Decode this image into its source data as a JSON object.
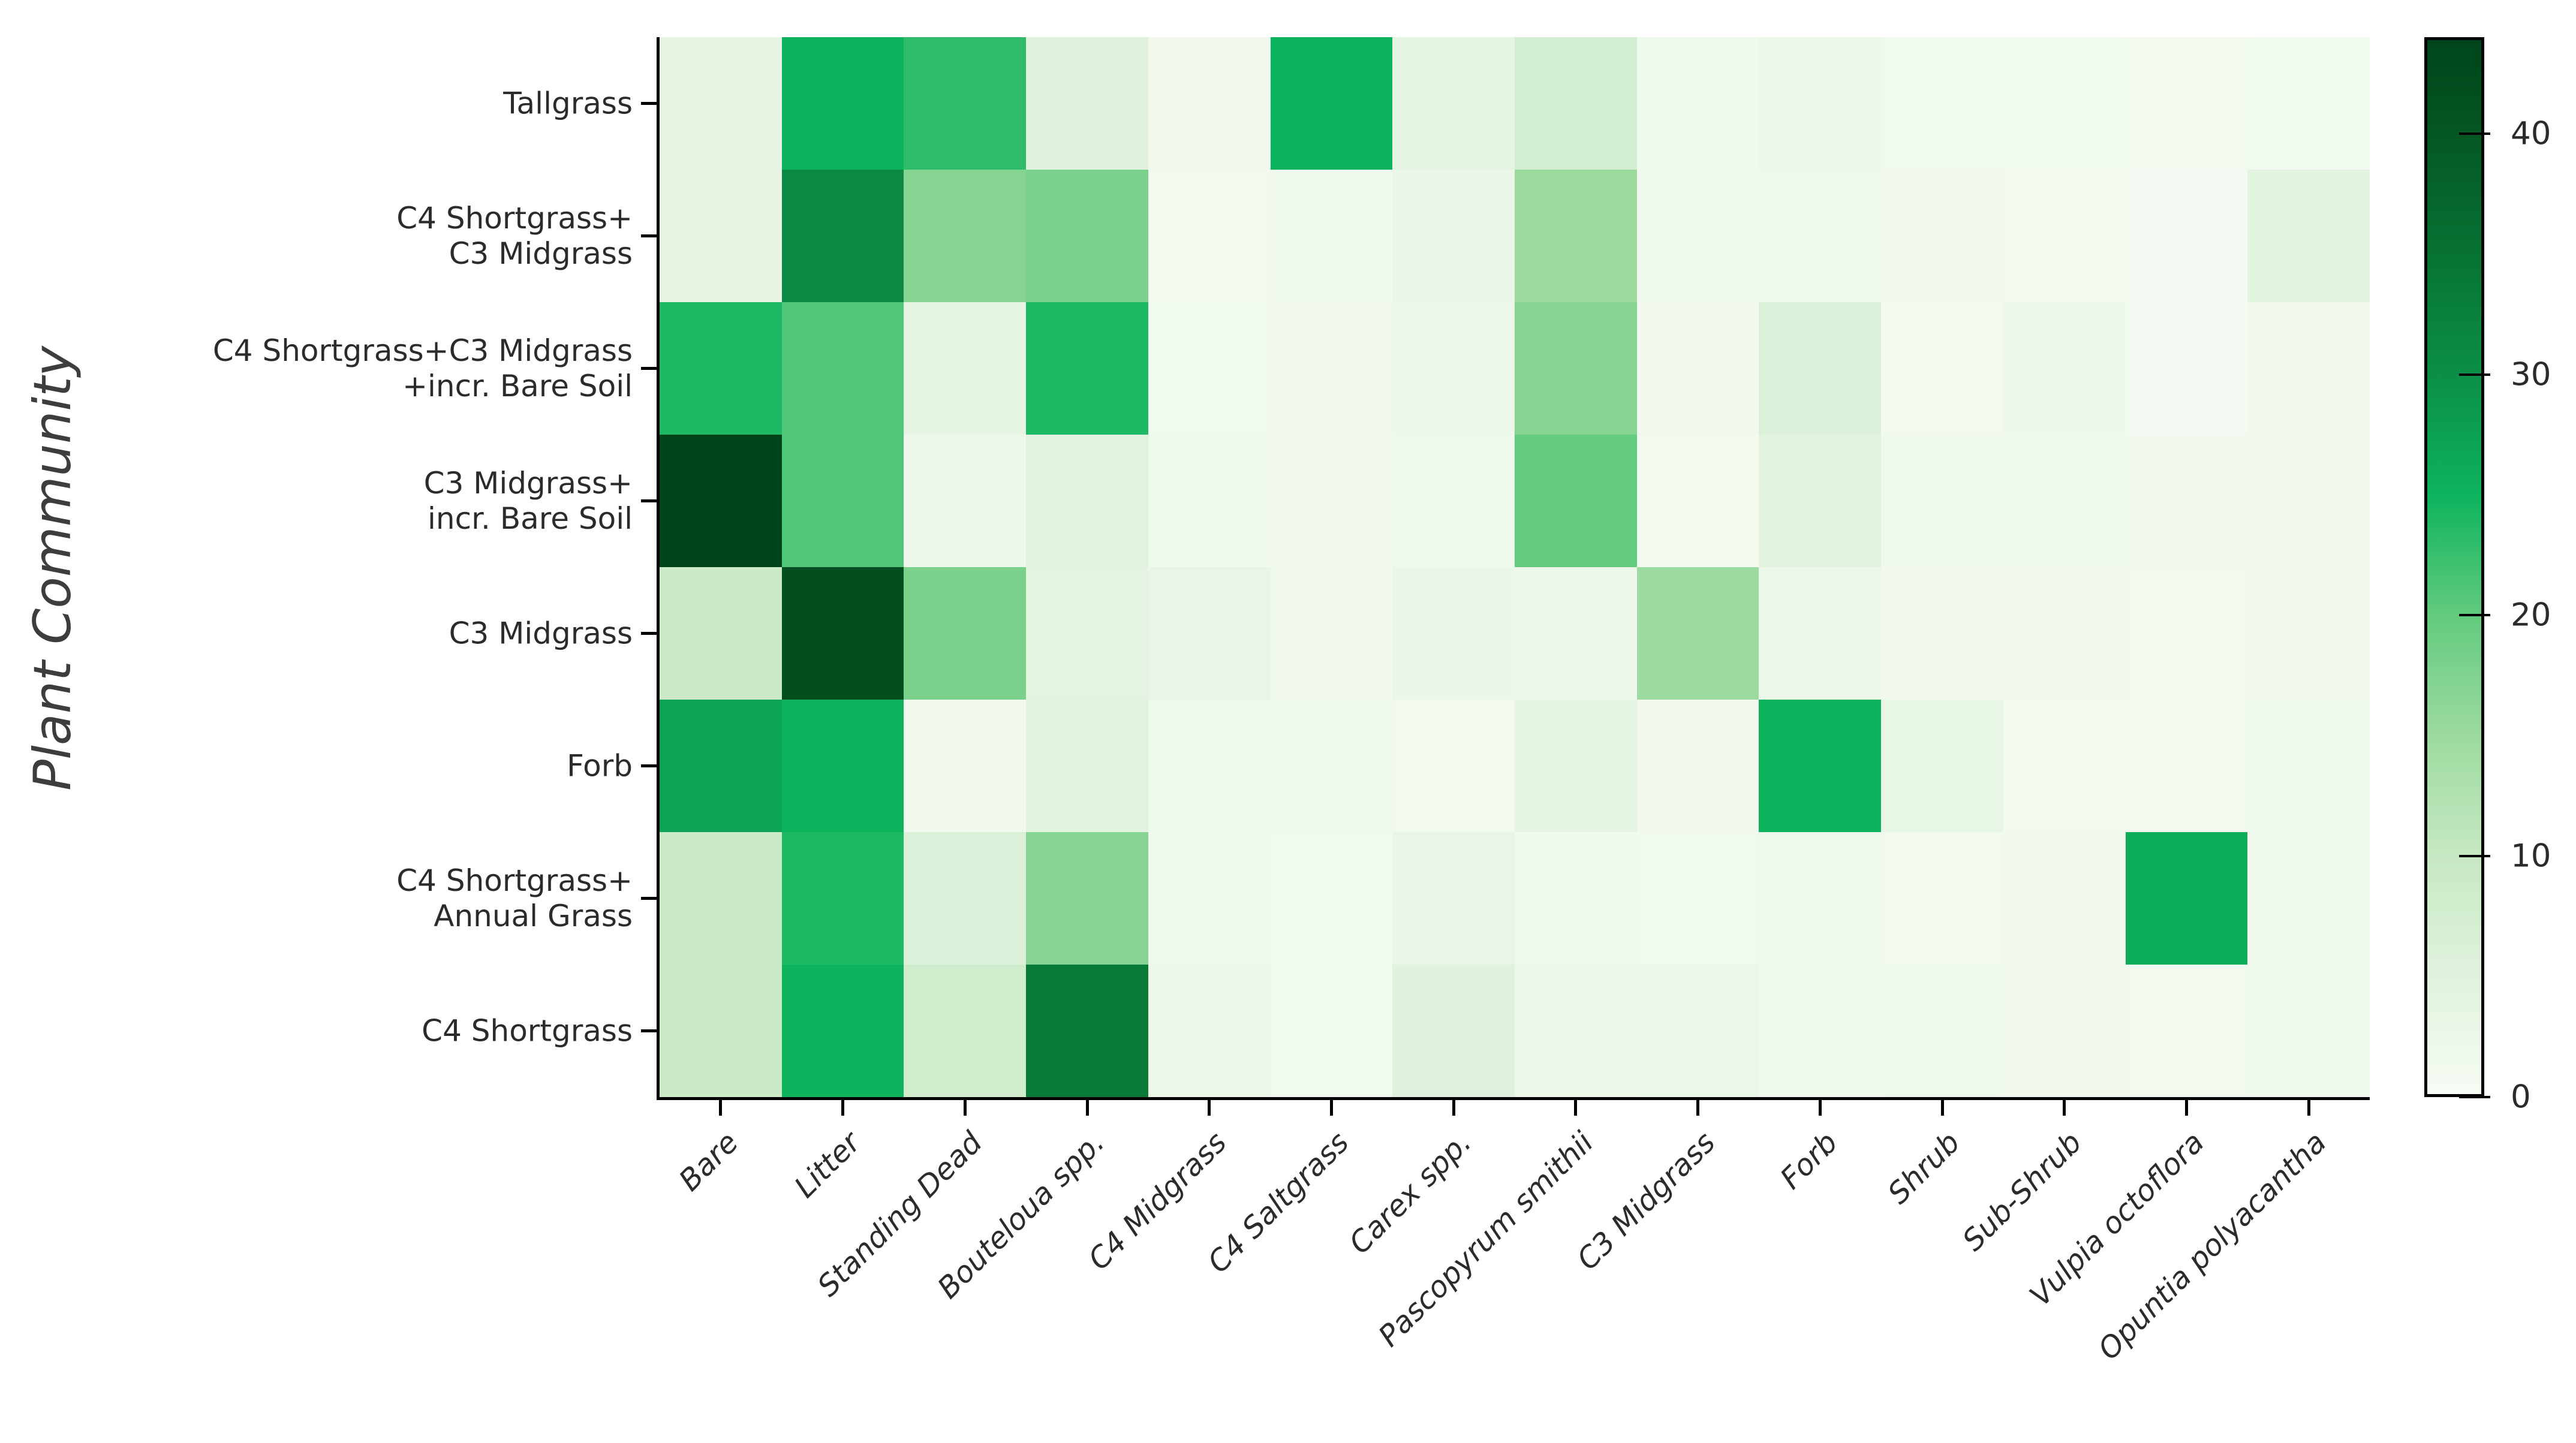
{
  "figure": {
    "background": "#ffffff",
    "text_color": "#2b2b2b",
    "spine_color": "#000000"
  },
  "chart_data": {
    "type": "heatmap",
    "title": "",
    "xlabel": "",
    "ylabel": "Plant Community",
    "legend_position": "right-colorbar",
    "grid": false,
    "x_tick_rotation": 45,
    "x_tick_style": "italic",
    "rows": [
      "Tallgrass",
      "C4 Shortgrass+\nC3 Midgrass",
      "C4 Shortgrass+C3 Midgrass\n+incr. Bare Soil",
      "C3 Midgrass+\nincr. Bare Soil",
      "C3 Midgrass",
      "Forb",
      "C4 Shortgrass+\nAnnual Grass",
      "C4 Shortgrass"
    ],
    "columns": [
      "Bare",
      "Litter",
      "Standing Dead",
      "Bouteloua spp.",
      "C4 Midgrass",
      "C4 Saltgrass",
      "Carex spp.",
      "Pascopyrum smithii",
      "C3 Midgrass",
      "Forb",
      "Shrub",
      "Sub-Shrub",
      "Vulpia octoflora",
      "Opuntia polyacantha"
    ],
    "values": [
      [
        3.3,
        25.0,
        23.0,
        5.0,
        1.4,
        25.0,
        3.7,
        7.5,
        1.5,
        2.3,
        1.2,
        1.2,
        1.0,
        1.2
      ],
      [
        3.3,
        31.0,
        17.0,
        18.0,
        1.1,
        1.5,
        2.8,
        15.0,
        1.5,
        1.9,
        1.3,
        1.0,
        0.9,
        4.6
      ],
      [
        24.0,
        21.0,
        3.7,
        24.0,
        1.2,
        1.3,
        2.1,
        17.0,
        1.3,
        6.0,
        1.1,
        2.1,
        0.9,
        1.3
      ],
      [
        44.0,
        21.0,
        2.2,
        4.8,
        1.5,
        1.3,
        2.0,
        20.0,
        1.1,
        4.8,
        1.8,
        1.5,
        1.3,
        1.3
      ],
      [
        9.0,
        42.0,
        18.0,
        4.0,
        3.0,
        1.3,
        2.8,
        2.2,
        15.0,
        2.3,
        1.3,
        1.4,
        1.0,
        1.3
      ],
      [
        27.0,
        25.0,
        1.3,
        4.8,
        1.8,
        1.7,
        1.1,
        3.7,
        1.3,
        25.0,
        3.2,
        1.1,
        1.0,
        1.5
      ],
      [
        9.0,
        24.0,
        6.0,
        17.0,
        1.5,
        1.2,
        3.0,
        1.5,
        1.2,
        1.6,
        1.1,
        1.3,
        26.0,
        1.6
      ],
      [
        9.0,
        25.0,
        8.0,
        34.0,
        2.5,
        1.2,
        5.0,
        2.2,
        2.6,
        1.6,
        1.9,
        1.3,
        1.0,
        1.5
      ]
    ],
    "colormap": {
      "name": "Greens",
      "vmin": 0,
      "vmax": 44,
      "stops": [
        [
          0,
          "#f7fcf5"
        ],
        [
          5,
          "#e0f2dd"
        ],
        [
          10,
          "#c6e8c2"
        ],
        [
          15,
          "#9cda9f"
        ],
        [
          20,
          "#62cb7e"
        ],
        [
          25,
          "#0eb35e"
        ],
        [
          30,
          "#0b8f47"
        ],
        [
          35,
          "#077333"
        ],
        [
          40,
          "#045723"
        ],
        [
          44,
          "#00441b"
        ]
      ]
    },
    "colorbar": {
      "ticks": [
        0,
        10,
        20,
        30,
        40
      ]
    }
  }
}
